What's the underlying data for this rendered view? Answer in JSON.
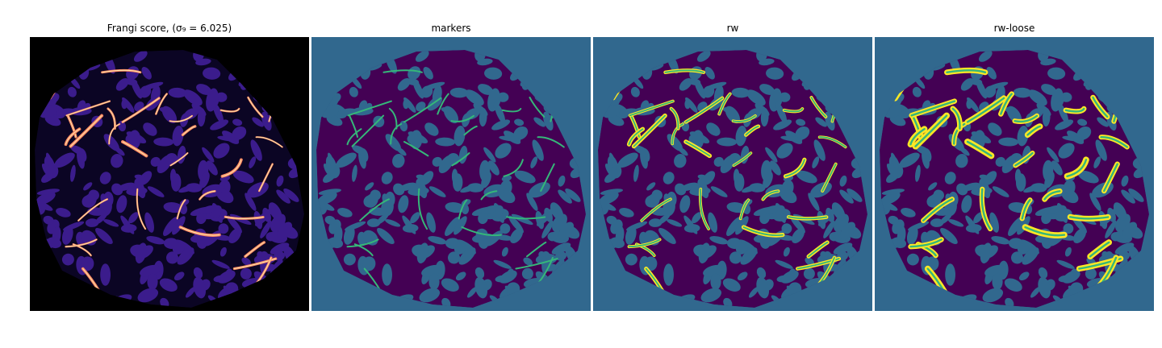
{
  "figure": {
    "panels": [
      {
        "id": "frangi",
        "title": "Frangi score, (σ₉ = 6.025)",
        "colormap": "magma",
        "background": "#000000"
      },
      {
        "id": "markers",
        "title": "markers",
        "colormap": "viridis",
        "background": "#31688e"
      },
      {
        "id": "rw",
        "title": "rw",
        "colormap": "viridis",
        "background": "#31688e"
      },
      {
        "id": "rw-loose",
        "title": "rw-loose",
        "colormap": "viridis",
        "background": "#31688e"
      }
    ]
  },
  "colors": {
    "magma_dark": "#0b0524",
    "magma_purple": "#3b1c8c",
    "magma_blob": "#2a1680",
    "magma_hot": "#fb8761",
    "magma_bright": "#fcfdbf",
    "viridis_bg": "#31688e",
    "viridis_tissue": "#440154",
    "viridis_teal": "#35b779",
    "viridis_yellow": "#fde725"
  }
}
